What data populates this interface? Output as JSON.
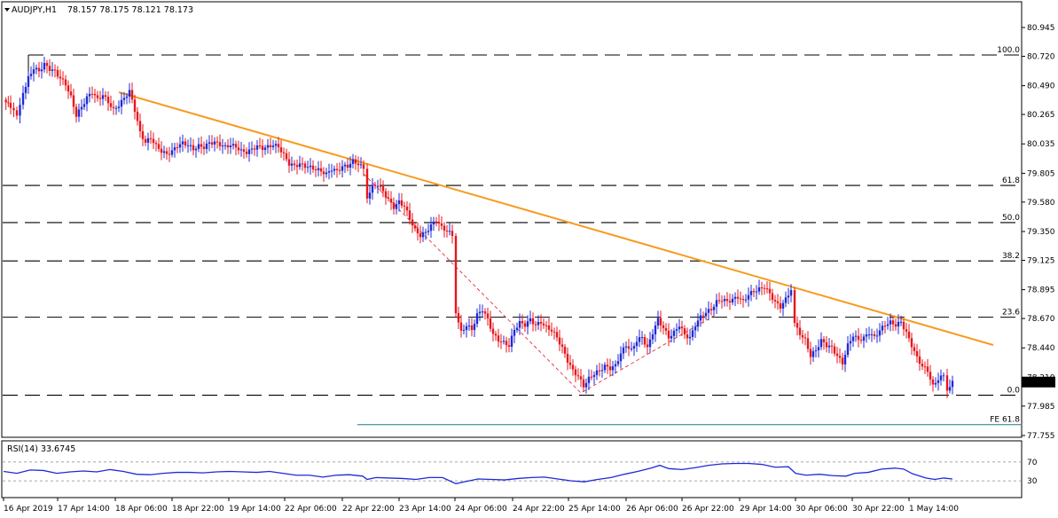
{
  "header": {
    "symbol": "AUDJPY,H1",
    "ohlc": "78.157 78.175 78.121 78.173"
  },
  "colors": {
    "bull": "#1f2ad6",
    "bear": "#e8161b",
    "trendline": "#f79a1e",
    "fib": "#000000",
    "fe": "#1f7c7c",
    "rsi": "#1f2ad6",
    "price_box": "#000000"
  },
  "chart_data": [
    {
      "type": "candlestick",
      "title": "AUDJPY,H1",
      "ylim": [
        77.7,
        81.1
      ],
      "yticks": [
        "80.945",
        "80.720",
        "80.490",
        "80.265",
        "80.035",
        "79.805",
        "79.580",
        "79.350",
        "79.125",
        "78.895",
        "78.670",
        "78.440",
        "78.210",
        "77.985",
        "77.755"
      ],
      "xticks": [
        "16 Apr 2019",
        "17 Apr 14:00",
        "18 Apr 06:00",
        "18 Apr 22:00",
        "19 Apr 14:00",
        "22 Apr 06:00",
        "22 Apr 22:00",
        "23 Apr 14:00",
        "24 Apr 06:00",
        "24 Apr 22:00",
        "25 Apr 14:00",
        "26 Apr 06:00",
        "26 Apr 22:00",
        "29 Apr 14:00",
        "30 Apr 06:00",
        "30 Apr 22:00",
        "1 May 14:00"
      ],
      "last_price": "78.173",
      "close_path": [
        [
          0,
          80.38
        ],
        [
          8,
          80.32
        ],
        [
          15,
          80.25
        ],
        [
          22,
          80.42
        ],
        [
          28,
          80.55
        ],
        [
          34,
          80.63
        ],
        [
          40,
          80.6
        ],
        [
          46,
          80.66
        ],
        [
          52,
          80.62
        ],
        [
          58,
          80.6
        ],
        [
          64,
          80.55
        ],
        [
          70,
          80.5
        ],
        [
          76,
          80.4
        ],
        [
          82,
          80.26
        ],
        [
          88,
          80.32
        ],
        [
          94,
          80.4
        ],
        [
          100,
          80.44
        ],
        [
          106,
          80.38
        ],
        [
          112,
          80.42
        ],
        [
          118,
          80.36
        ],
        [
          124,
          80.3
        ],
        [
          130,
          80.34
        ],
        [
          136,
          80.39
        ],
        [
          142,
          80.45
        ],
        [
          148,
          80.3
        ],
        [
          154,
          80.12
        ],
        [
          160,
          80.05
        ],
        [
          166,
          80.08
        ],
        [
          172,
          80.02
        ],
        [
          178,
          79.98
        ],
        [
          184,
          79.95
        ],
        [
          190,
          79.98
        ],
        [
          196,
          80.02
        ],
        [
          202,
          80.04
        ],
        [
          208,
          80.03
        ],
        [
          214,
          79.99
        ],
        [
          220,
          80.02
        ],
        [
          226,
          80.01
        ],
        [
          232,
          80.04
        ],
        [
          238,
          80.05
        ],
        [
          244,
          80.03
        ],
        [
          250,
          80.01
        ],
        [
          256,
          80.03
        ],
        [
          262,
          80.01
        ],
        [
          268,
          79.98
        ],
        [
          274,
          79.97
        ],
        [
          280,
          79.99
        ],
        [
          286,
          80.02
        ],
        [
          292,
          80.0
        ],
        [
          298,
          80.01
        ],
        [
          304,
          80.03
        ],
        [
          310,
          80.01
        ],
        [
          316,
          79.95
        ],
        [
          322,
          79.88
        ],
        [
          328,
          79.86
        ],
        [
          334,
          79.88
        ],
        [
          340,
          79.86
        ],
        [
          346,
          79.85
        ],
        [
          352,
          79.84
        ],
        [
          358,
          79.82
        ],
        [
          364,
          79.8
        ],
        [
          370,
          79.84
        ],
        [
          376,
          79.82
        ],
        [
          382,
          79.86
        ],
        [
          388,
          79.86
        ],
        [
          394,
          79.9
        ],
        [
          400,
          79.88
        ],
        [
          406,
          79.84
        ],
        [
          410,
          79.62
        ],
        [
          416,
          79.7
        ],
        [
          422,
          79.72
        ],
        [
          428,
          79.66
        ],
        [
          434,
          79.6
        ],
        [
          440,
          79.54
        ],
        [
          446,
          79.58
        ],
        [
          452,
          79.55
        ],
        [
          458,
          79.45
        ],
        [
          464,
          79.36
        ],
        [
          470,
          79.32
        ],
        [
          476,
          79.34
        ],
        [
          482,
          79.4
        ],
        [
          488,
          79.44
        ],
        [
          494,
          79.38
        ],
        [
          500,
          79.36
        ],
        [
          506,
          79.32
        ],
        [
          510,
          78.72
        ],
        [
          516,
          78.56
        ],
        [
          522,
          78.62
        ],
        [
          528,
          78.58
        ],
        [
          534,
          78.7
        ],
        [
          540,
          78.74
        ],
        [
          546,
          78.66
        ],
        [
          552,
          78.55
        ],
        [
          558,
          78.5
        ],
        [
          564,
          78.48
        ],
        [
          570,
          78.46
        ],
        [
          576,
          78.58
        ],
        [
          582,
          78.64
        ],
        [
          588,
          78.62
        ],
        [
          594,
          78.66
        ],
        [
          600,
          78.62
        ],
        [
          606,
          78.64
        ],
        [
          612,
          78.6
        ],
        [
          618,
          78.58
        ],
        [
          624,
          78.52
        ],
        [
          630,
          78.44
        ],
        [
          636,
          78.34
        ],
        [
          642,
          78.26
        ],
        [
          648,
          78.22
        ],
        [
          654,
          78.14
        ],
        [
          660,
          78.2
        ],
        [
          666,
          78.24
        ],
        [
          672,
          78.26
        ],
        [
          678,
          78.3
        ],
        [
          684,
          78.28
        ],
        [
          690,
          78.3
        ],
        [
          696,
          78.4
        ],
        [
          702,
          78.46
        ],
        [
          708,
          78.42
        ],
        [
          714,
          78.5
        ],
        [
          720,
          78.52
        ],
        [
          726,
          78.44
        ],
        [
          732,
          78.56
        ],
        [
          738,
          78.66
        ],
        [
          744,
          78.6
        ],
        [
          750,
          78.52
        ],
        [
          756,
          78.56
        ],
        [
          762,
          78.62
        ],
        [
          768,
          78.54
        ],
        [
          774,
          78.52
        ],
        [
          780,
          78.62
        ],
        [
          786,
          78.68
        ],
        [
          792,
          78.72
        ],
        [
          798,
          78.74
        ],
        [
          804,
          78.8
        ],
        [
          810,
          78.82
        ],
        [
          816,
          78.8
        ],
        [
          822,
          78.82
        ],
        [
          828,
          78.84
        ],
        [
          834,
          78.8
        ],
        [
          840,
          78.86
        ],
        [
          846,
          78.88
        ],
        [
          852,
          78.9
        ],
        [
          858,
          78.92
        ],
        [
          864,
          78.86
        ],
        [
          870,
          78.8
        ],
        [
          876,
          78.76
        ],
        [
          882,
          78.82
        ],
        [
          888,
          78.9
        ],
        [
          892,
          78.62
        ],
        [
          898,
          78.55
        ],
        [
          904,
          78.5
        ],
        [
          910,
          78.38
        ],
        [
          916,
          78.42
        ],
        [
          922,
          78.5
        ],
        [
          928,
          78.46
        ],
        [
          934,
          78.44
        ],
        [
          940,
          78.38
        ],
        [
          946,
          78.32
        ],
        [
          952,
          78.46
        ],
        [
          958,
          78.54
        ],
        [
          964,
          78.5
        ],
        [
          970,
          78.52
        ],
        [
          976,
          78.56
        ],
        [
          982,
          78.52
        ],
        [
          988,
          78.58
        ],
        [
          994,
          78.62
        ],
        [
          1000,
          78.64
        ],
        [
          1006,
          78.62
        ],
        [
          1012,
          78.64
        ],
        [
          1018,
          78.56
        ],
        [
          1024,
          78.46
        ],
        [
          1030,
          78.36
        ],
        [
          1036,
          78.3
        ],
        [
          1042,
          78.26
        ],
        [
          1048,
          78.14
        ],
        [
          1054,
          78.2
        ],
        [
          1060,
          78.22
        ],
        [
          1064,
          78.12
        ],
        [
          1070,
          78.17
        ]
      ]
    },
    {
      "type": "line",
      "title": "RSI(14) 33.6745",
      "yticks": [
        "70",
        "30"
      ],
      "rsi_path": [
        [
          0,
          50
        ],
        [
          15,
          46
        ],
        [
          30,
          53
        ],
        [
          45,
          52
        ],
        [
          60,
          46
        ],
        [
          75,
          49
        ],
        [
          90,
          51
        ],
        [
          105,
          49
        ],
        [
          120,
          54
        ],
        [
          135,
          50
        ],
        [
          150,
          44
        ],
        [
          165,
          43
        ],
        [
          180,
          46
        ],
        [
          195,
          48
        ],
        [
          210,
          48
        ],
        [
          225,
          47
        ],
        [
          240,
          49
        ],
        [
          255,
          50
        ],
        [
          270,
          49
        ],
        [
          285,
          48
        ],
        [
          300,
          50
        ],
        [
          315,
          46
        ],
        [
          330,
          42
        ],
        [
          345,
          42
        ],
        [
          360,
          38
        ],
        [
          375,
          42
        ],
        [
          390,
          43
        ],
        [
          405,
          40
        ],
        [
          410,
          33
        ],
        [
          420,
          37
        ],
        [
          435,
          36
        ],
        [
          450,
          35
        ],
        [
          465,
          33
        ],
        [
          480,
          37
        ],
        [
          495,
          37
        ],
        [
          510,
          24
        ],
        [
          520,
          28
        ],
        [
          535,
          34
        ],
        [
          550,
          33
        ],
        [
          565,
          32
        ],
        [
          580,
          35
        ],
        [
          595,
          37
        ],
        [
          610,
          38
        ],
        [
          625,
          34
        ],
        [
          640,
          30
        ],
        [
          655,
          28
        ],
        [
          670,
          33
        ],
        [
          685,
          37
        ],
        [
          700,
          44
        ],
        [
          715,
          50
        ],
        [
          730,
          57
        ],
        [
          740,
          63
        ],
        [
          750,
          56
        ],
        [
          765,
          54
        ],
        [
          780,
          58
        ],
        [
          795,
          63
        ],
        [
          810,
          66
        ],
        [
          825,
          67
        ],
        [
          840,
          67
        ],
        [
          855,
          65
        ],
        [
          870,
          59
        ],
        [
          885,
          60
        ],
        [
          893,
          46
        ],
        [
          905,
          42
        ],
        [
          920,
          44
        ],
        [
          935,
          41
        ],
        [
          950,
          40
        ],
        [
          960,
          46
        ],
        [
          975,
          48
        ],
        [
          990,
          55
        ],
        [
          1005,
          57
        ],
        [
          1015,
          55
        ],
        [
          1025,
          45
        ],
        [
          1040,
          36
        ],
        [
          1050,
          33
        ],
        [
          1060,
          36
        ],
        [
          1070,
          34
        ]
      ]
    }
  ],
  "fib_levels": [
    {
      "label": "100.0",
      "value": 80.73
    },
    {
      "label": "61.8",
      "value": 79.71
    },
    {
      "label": "50.0",
      "value": 79.42
    },
    {
      "label": "38.2",
      "value": 79.12
    },
    {
      "label": "23.6",
      "value": 78.68
    },
    {
      "label": "0.0",
      "value": 78.07
    }
  ],
  "fe_level": {
    "label": "FE 61.8",
    "value": 77.84
  }
}
